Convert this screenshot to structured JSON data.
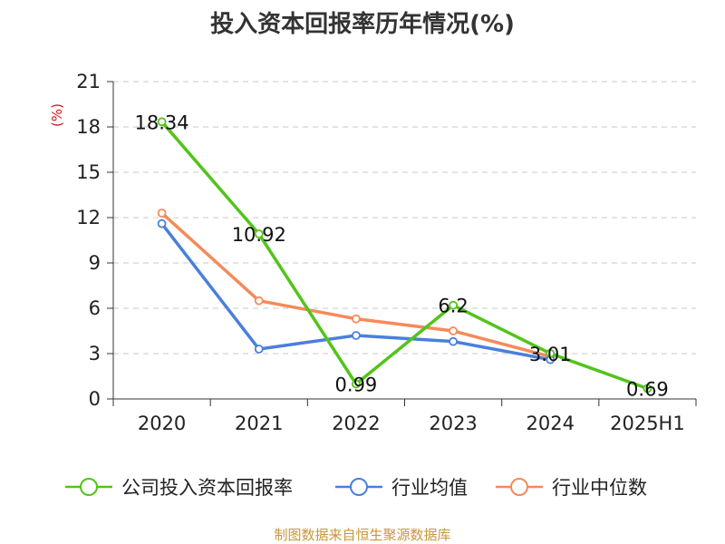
{
  "title": "投入资本回报率历年情况(%)",
  "source": "制图数据来自恒生聚源数据库",
  "chart_data": {
    "type": "line",
    "title": "投入资本回报率历年情况(%)",
    "ylabel": "(%)",
    "xlabel": "",
    "categories": [
      "2020",
      "2021",
      "2022",
      "2023",
      "2024",
      "2025H1"
    ],
    "ylim": [
      0,
      21
    ],
    "yticks": [
      0,
      3,
      6,
      9,
      12,
      15,
      18,
      21
    ],
    "grid": true,
    "legend_position": "bottom",
    "series": [
      {
        "name": "公司投入资本回报率",
        "color": "#52c41a",
        "values": [
          18.34,
          10.92,
          0.99,
          6.2,
          3.01,
          0.69
        ],
        "labels": [
          "18.34",
          "10.92",
          "0.99",
          "6.2",
          "3.01",
          "0.69"
        ]
      },
      {
        "name": "行业均值",
        "color": "#4a7fdc",
        "values": [
          11.6,
          3.3,
          4.2,
          3.8,
          2.6,
          null
        ]
      },
      {
        "name": "行业中位数",
        "color": "#f58a5a",
        "values": [
          12.3,
          6.5,
          5.3,
          4.5,
          2.8,
          null
        ]
      }
    ]
  }
}
